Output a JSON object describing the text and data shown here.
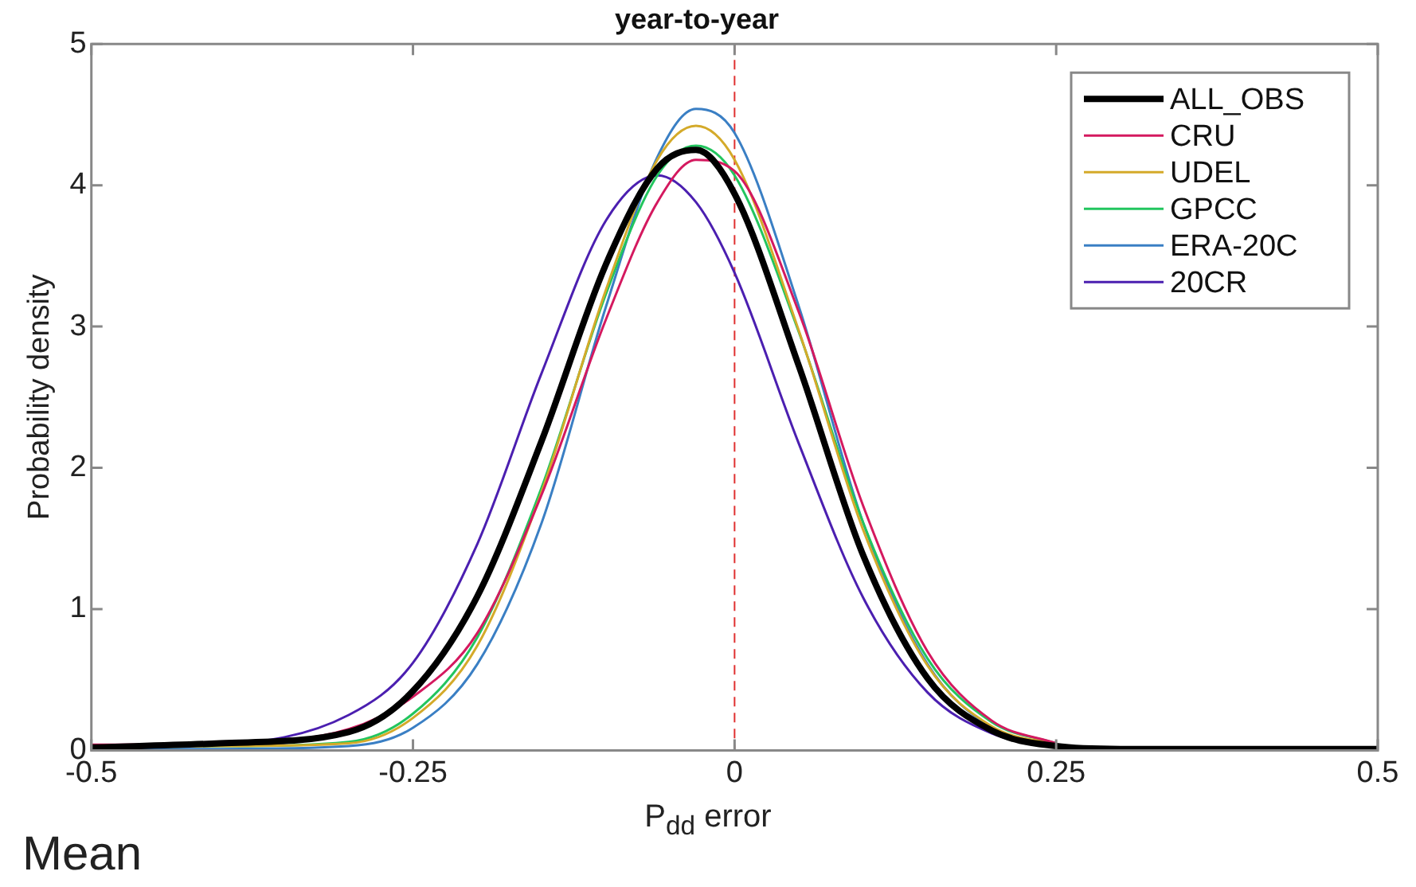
{
  "chart_data": {
    "type": "line",
    "title": "year-to-year",
    "xlabel": "P$_{dd}$ error",
    "ylabel": "Probability density",
    "x": [
      -0.5,
      -0.4,
      -0.3,
      -0.25,
      -0.2,
      -0.15,
      -0.1,
      -0.06,
      -0.03,
      0,
      0.05,
      0.1,
      0.15,
      0.2,
      0.25,
      0.3,
      0.4,
      0.5
    ],
    "series": [
      {
        "name": "ALL_OBS",
        "color": "#000000",
        "values": [
          0.02,
          0.05,
          0.13,
          0.42,
          1.09,
          2.19,
          3.44,
          4.12,
          4.25,
          3.94,
          2.72,
          1.38,
          0.51,
          0.14,
          0.03,
          0.01,
          0.01,
          0.01
        ]
      },
      {
        "name": "CRU",
        "color": "#d4195f",
        "values": [
          0.04,
          0.05,
          0.15,
          0.38,
          0.83,
          1.81,
          3.05,
          3.88,
          4.18,
          4.1,
          3.1,
          1.73,
          0.7,
          0.21,
          0.05,
          null,
          null,
          null
        ]
      },
      {
        "name": "UDEL",
        "color": "#d4aa2a",
        "values": [
          0.02,
          0.03,
          0.05,
          0.23,
          0.74,
          1.83,
          3.26,
          4.18,
          4.42,
          4.18,
          2.97,
          1.56,
          0.6,
          0.17,
          0.04,
          null,
          null,
          null
        ]
      },
      {
        "name": "GPCC",
        "color": "#22c55e",
        "values": [
          0.02,
          0.03,
          0.06,
          0.26,
          0.8,
          1.86,
          3.23,
          4.07,
          4.28,
          4.07,
          2.96,
          1.61,
          0.65,
          0.2,
          0.05,
          null,
          null,
          null
        ]
      },
      {
        "name": "ERA-20C",
        "color": "#3a7fc4",
        "values": [
          0.01,
          0.01,
          0.03,
          0.16,
          0.61,
          1.61,
          3.14,
          4.2,
          4.54,
          4.37,
          3.14,
          1.61,
          0.61,
          0.16,
          0.03,
          null,
          null,
          null
        ]
      },
      {
        "name": "20CR",
        "color": "#4b1fb0",
        "values": [
          0.02,
          0.04,
          0.25,
          0.62,
          1.46,
          2.67,
          3.75,
          4.07,
          3.88,
          3.38,
          2.17,
          1.08,
          0.41,
          0.12,
          0.03,
          null,
          null,
          null
        ]
      }
    ],
    "xlim": [
      -0.5,
      0.5
    ],
    "xticks": [
      -0.5,
      -0.25,
      0,
      0.25,
      0.5
    ],
    "ylim": [
      0,
      5
    ],
    "yticks": [
      0,
      1,
      2,
      3,
      4,
      5
    ],
    "ref_lines": [
      {
        "axis": "x",
        "value": 0,
        "color": "#e03030",
        "line_style": "dashed"
      }
    ],
    "annotations": [
      "Mean"
    ],
    "grid": false,
    "legend": "top right",
    "marker": "none",
    "line_style": "solid"
  }
}
